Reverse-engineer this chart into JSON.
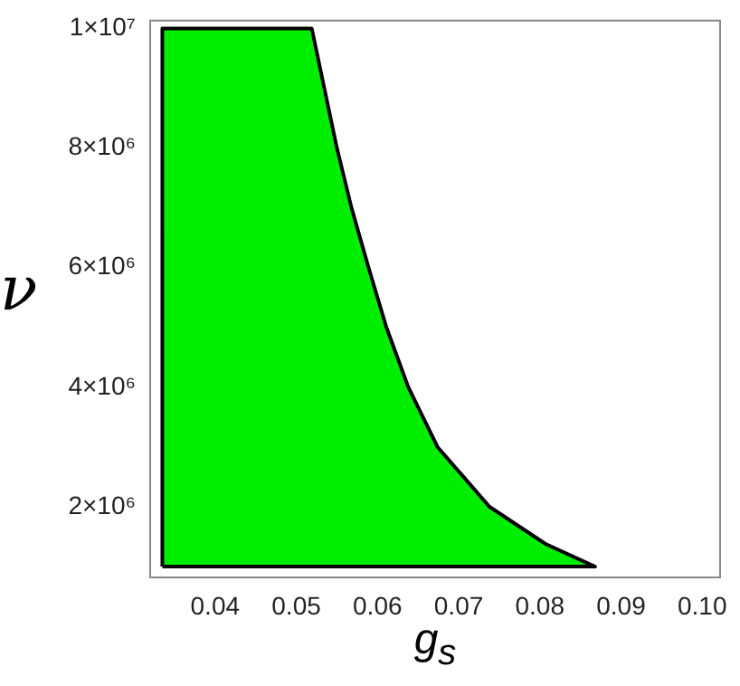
{
  "chart_data": {
    "type": "area",
    "xlabel": "g$_{s}$",
    "ylabel": "ν",
    "series": [
      {
        "color": "#00ee00",
        "x": [
          0.0335,
          0.0335,
          0.0519,
          0.055,
          0.0568,
          0.0589,
          0.0611,
          0.0638,
          0.0674,
          0.0738,
          0.0807,
          0.0868,
          0.0335
        ],
        "values": [
          1000000,
          10000000,
          10000000,
          8000000,
          7000000,
          6000000,
          5000000,
          4000000,
          3000000,
          2000000,
          1380000,
          1000000,
          1000000
        ]
      }
    ],
    "xlim": [
      0.032,
      0.1022
    ],
    "ylim": [
      820000,
      10130000
    ],
    "xticks": [
      0.04,
      0.05,
      0.06,
      0.07,
      0.08,
      0.09,
      {
        "value": 0.1,
        "label": "0.10"
      }
    ],
    "yticks": [
      {
        "value": 2000000,
        "label": "2×10⁶"
      },
      {
        "value": 4000000,
        "label": "4×10⁶"
      },
      {
        "value": 6000000,
        "label": "6×10⁶"
      },
      {
        "value": 8000000,
        "label": "8×10⁶"
      },
      {
        "value": 10000000,
        "label": "1×10⁷"
      }
    ],
    "grid": false,
    "legend": false,
    "marker": "none"
  }
}
